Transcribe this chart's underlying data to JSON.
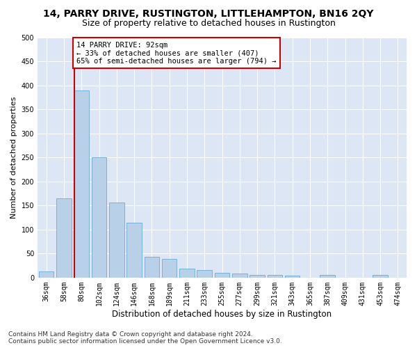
{
  "title": "14, PARRY DRIVE, RUSTINGTON, LITTLEHAMPTON, BN16 2QY",
  "subtitle": "Size of property relative to detached houses in Rustington",
  "xlabel": "Distribution of detached houses by size in Rustington",
  "ylabel": "Number of detached properties",
  "categories": [
    "36sqm",
    "58sqm",
    "80sqm",
    "102sqm",
    "124sqm",
    "146sqm",
    "168sqm",
    "189sqm",
    "211sqm",
    "233sqm",
    "255sqm",
    "277sqm",
    "299sqm",
    "321sqm",
    "343sqm",
    "365sqm",
    "387sqm",
    "409sqm",
    "431sqm",
    "453sqm",
    "474sqm"
  ],
  "values": [
    13,
    165,
    390,
    250,
    157,
    115,
    43,
    39,
    18,
    15,
    10,
    9,
    6,
    5,
    4,
    0,
    5,
    0,
    0,
    5,
    0
  ],
  "bar_color": "#b8d0e8",
  "bar_edge_color": "#6aaad4",
  "property_bar_index": 2,
  "annotation_text": "14 PARRY DRIVE: 92sqm\n← 33% of detached houses are smaller (407)\n65% of semi-detached houses are larger (794) →",
  "annotation_box_color": "#ffffff",
  "annotation_box_edge": "#cc0000",
  "vline_color": "#cc0000",
  "plot_background": "#dce6f5",
  "fig_background": "#ffffff",
  "ylim": [
    0,
    500
  ],
  "yticks": [
    0,
    50,
    100,
    150,
    200,
    250,
    300,
    350,
    400,
    450,
    500
  ],
  "footer": "Contains HM Land Registry data © Crown copyright and database right 2024.\nContains public sector information licensed under the Open Government Licence v3.0.",
  "title_fontsize": 10,
  "subtitle_fontsize": 9,
  "xlabel_fontsize": 8.5,
  "ylabel_fontsize": 8,
  "tick_fontsize": 7,
  "footer_fontsize": 6.5,
  "annotation_fontsize": 7.5
}
